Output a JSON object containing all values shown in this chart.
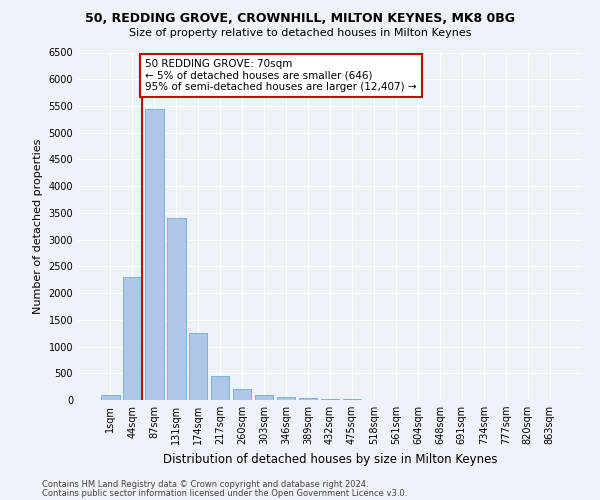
{
  "title1": "50, REDDING GROVE, CROWNHILL, MILTON KEYNES, MK8 0BG",
  "title2": "Size of property relative to detached houses in Milton Keynes",
  "xlabel": "Distribution of detached houses by size in Milton Keynes",
  "ylabel": "Number of detached properties",
  "categories": [
    "1sqm",
    "44sqm",
    "87sqm",
    "131sqm",
    "174sqm",
    "217sqm",
    "260sqm",
    "303sqm",
    "346sqm",
    "389sqm",
    "432sqm",
    "475sqm",
    "518sqm",
    "561sqm",
    "604sqm",
    "648sqm",
    "691sqm",
    "734sqm",
    "777sqm",
    "820sqm",
    "863sqm"
  ],
  "values": [
    100,
    2300,
    5450,
    3400,
    1250,
    450,
    200,
    100,
    60,
    30,
    15,
    10,
    8,
    5,
    4,
    3,
    2,
    2,
    1,
    1,
    1
  ],
  "bar_color": "#aec6e8",
  "bar_edge_color": "#6baed6",
  "vline_x": 1.45,
  "vline_color": "#cc0000",
  "annotation_text": "50 REDDING GROVE: 70sqm\n← 5% of detached houses are smaller (646)\n95% of semi-detached houses are larger (12,407) →",
  "annotation_box_color": "#ffffff",
  "annotation_box_edge": "#cc0000",
  "ylim": [
    0,
    6500
  ],
  "yticks": [
    0,
    500,
    1000,
    1500,
    2000,
    2500,
    3000,
    3500,
    4000,
    4500,
    5000,
    5500,
    6000,
    6500
  ],
  "footer1": "Contains HM Land Registry data © Crown copyright and database right 2024.",
  "footer2": "Contains public sector information licensed under the Open Government Licence v3.0.",
  "bg_color": "#eef2f9",
  "plot_bg_color": "#eef2f9",
  "title_fontsize": 9,
  "subtitle_fontsize": 8,
  "axis_label_fontsize": 8,
  "tick_fontsize": 7,
  "footer_fontsize": 6,
  "annot_fontsize": 7.5
}
